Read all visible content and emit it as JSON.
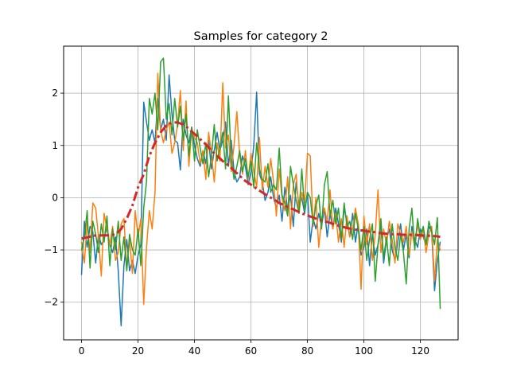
{
  "chart_data": {
    "type": "line",
    "title": "Samples for category 2",
    "xlabel": "",
    "ylabel": "",
    "xlim": [
      -6.35,
      133.35
    ],
    "ylim": [
      -2.72,
      2.9
    ],
    "xticks": [
      0,
      20,
      40,
      60,
      80,
      100,
      120
    ],
    "yticks": [
      -2,
      -1,
      0,
      1,
      2
    ],
    "ytick_labels": [
      "−2",
      "−1",
      "0",
      "1",
      "2"
    ],
    "grid": true,
    "legend": "none",
    "series": [
      {
        "color": "#1f77b4",
        "style": "solid",
        "x": [
          0,
          1,
          2,
          3,
          4,
          5,
          6,
          7,
          8,
          9,
          10,
          11,
          12,
          13,
          14,
          15,
          16,
          17,
          18,
          19,
          20,
          21,
          22,
          23,
          24,
          25,
          26,
          27,
          28,
          29,
          30,
          31,
          32,
          33,
          34,
          35,
          36,
          37,
          38,
          39,
          40,
          41,
          42,
          43,
          44,
          45,
          46,
          47,
          48,
          49,
          50,
          51,
          52,
          53,
          54,
          55,
          56,
          57,
          58,
          59,
          60,
          61,
          62,
          63,
          64,
          65,
          66,
          67,
          68,
          69,
          70,
          71,
          72,
          73,
          74,
          75,
          76,
          77,
          78,
          79,
          80,
          81,
          82,
          83,
          84,
          85,
          86,
          87,
          88,
          89,
          90,
          91,
          92,
          93,
          94,
          95,
          96,
          97,
          98,
          99,
          100,
          101,
          102,
          103,
          104,
          105,
          106,
          107,
          108,
          109,
          110,
          111,
          112,
          113,
          114,
          115,
          116,
          117,
          118,
          119,
          120,
          121,
          122,
          123,
          124,
          125,
          126,
          127
        ],
        "y": [
          -1.47,
          -0.45,
          -0.95,
          -0.55,
          -0.65,
          -1.25,
          -0.7,
          -0.9,
          -0.8,
          -0.55,
          -0.9,
          -1.05,
          -0.75,
          -1.4,
          -2.45,
          -1.3,
          -0.8,
          -1.4,
          -1.2,
          -1.45,
          -1.1,
          -0.9,
          1.83,
          1.45,
          1.1,
          1.3,
          1.05,
          1.9,
          1.3,
          1.5,
          1.1,
          2.35,
          1.6,
          1.1,
          1.05,
          0.53,
          1.5,
          1.2,
          1.05,
          1.35,
          1.0,
          0.75,
          0.6,
          0.9,
          0.65,
          1.1,
          0.55,
          0.9,
          1.25,
          0.9,
          1.1,
          1.45,
          0.6,
          1.1,
          0.5,
          0.3,
          0.4,
          0.8,
          0.6,
          0.25,
          0.5,
          1.0,
          2.02,
          0.45,
          0.3,
          -0.05,
          0.1,
          0.4,
          0.0,
          -0.2,
          0.05,
          -0.45,
          0.2,
          -0.25,
          0.05,
          -0.55,
          0.3,
          -0.15,
          0.0,
          -0.3,
          0.1,
          -0.85,
          -0.4,
          -0.6,
          -0.3,
          -0.55,
          -0.2,
          -0.75,
          -0.3,
          -0.6,
          -0.2,
          -0.5,
          -0.85,
          -0.2,
          -0.45,
          -0.75,
          -0.3,
          -0.85,
          -0.5,
          -1.1,
          -0.95,
          -0.6,
          -1.3,
          -0.7,
          -1.1,
          -0.9,
          -0.55,
          -1.25,
          -0.8,
          -0.6,
          -1.0,
          -1.2,
          -0.85,
          -0.5,
          -1.0,
          -0.7,
          -1.15,
          -0.55,
          -0.8,
          -0.95,
          -0.6,
          -0.75,
          -0.9,
          -0.55,
          -0.65,
          -1.78,
          -1.2,
          -0.85
        ]
      },
      {
        "color": "#ff7f0e",
        "style": "solid",
        "x": [
          0,
          1,
          2,
          3,
          4,
          5,
          6,
          7,
          8,
          9,
          10,
          11,
          12,
          13,
          14,
          15,
          16,
          17,
          18,
          19,
          20,
          21,
          22,
          23,
          24,
          25,
          26,
          27,
          28,
          29,
          30,
          31,
          32,
          33,
          34,
          35,
          36,
          37,
          38,
          39,
          40,
          41,
          42,
          43,
          44,
          45,
          46,
          47,
          48,
          49,
          50,
          51,
          52,
          53,
          54,
          55,
          56,
          57,
          58,
          59,
          60,
          61,
          62,
          63,
          64,
          65,
          66,
          67,
          68,
          69,
          70,
          71,
          72,
          73,
          74,
          75,
          76,
          77,
          78,
          79,
          80,
          81,
          82,
          83,
          84,
          85,
          86,
          87,
          88,
          89,
          90,
          91,
          92,
          93,
          94,
          95,
          96,
          97,
          98,
          99,
          100,
          101,
          102,
          103,
          104,
          105,
          106,
          107,
          108,
          109,
          110,
          111,
          112,
          113,
          114,
          115,
          116,
          117,
          118,
          119,
          120,
          121,
          122,
          123,
          124,
          125,
          126,
          127
        ],
        "y": [
          -0.85,
          -1.25,
          -0.45,
          -1.05,
          -0.1,
          -0.2,
          -0.75,
          -1.5,
          -0.3,
          -0.6,
          -0.9,
          -0.55,
          -1.2,
          -1.05,
          -0.5,
          -0.4,
          -1.35,
          -0.8,
          -1.45,
          -0.25,
          -0.75,
          -0.4,
          -2.04,
          -0.95,
          -0.25,
          -0.6,
          0.1,
          2.38,
          1.3,
          1.05,
          1.3,
          1.45,
          0.85,
          1.05,
          1.4,
          2.05,
          0.9,
          1.85,
          0.6,
          1.3,
          1.15,
          1.05,
          0.65,
          0.9,
          0.35,
          1.25,
          0.85,
          0.3,
          1.05,
          0.7,
          2.2,
          0.95,
          1.2,
          0.5,
          1.0,
          1.65,
          0.8,
          0.45,
          0.9,
          0.35,
          0.85,
          0.5,
          0.2,
          1.15,
          0.15,
          0.6,
          0.2,
          0.75,
          0.3,
          -0.35,
          0.55,
          0.0,
          -0.25,
          0.4,
          -0.6,
          0.25,
          0.45,
          -0.3,
          0.1,
          -0.1,
          0.85,
          0.8,
          -0.55,
          0.0,
          -0.95,
          -0.4,
          -0.2,
          -0.45,
          0.15,
          -0.6,
          -0.3,
          -0.85,
          -0.4,
          -0.95,
          -0.35,
          -0.75,
          -0.6,
          -0.2,
          -0.5,
          -1.75,
          -0.35,
          -0.9,
          -0.5,
          -1.2,
          -0.7,
          0.15,
          -1.05,
          -0.6,
          -0.9,
          -0.45,
          -0.8,
          -1.25,
          -0.5,
          -0.7,
          -0.85,
          -0.55,
          -1.1,
          -0.65,
          -0.95,
          -0.5,
          -0.8,
          -0.6,
          -1.05,
          -0.7,
          -0.55,
          -1.6,
          -0.8,
          -1.0
        ]
      },
      {
        "color": "#2ca02c",
        "style": "solid",
        "x": [
          0,
          1,
          2,
          3,
          4,
          5,
          6,
          7,
          8,
          9,
          10,
          11,
          12,
          13,
          14,
          15,
          16,
          17,
          18,
          19,
          20,
          21,
          22,
          23,
          24,
          25,
          26,
          27,
          28,
          29,
          30,
          31,
          32,
          33,
          34,
          35,
          36,
          37,
          38,
          39,
          40,
          41,
          42,
          43,
          44,
          45,
          46,
          47,
          48,
          49,
          50,
          51,
          52,
          53,
          54,
          55,
          56,
          57,
          58,
          59,
          60,
          61,
          62,
          63,
          64,
          65,
          66,
          67,
          68,
          69,
          70,
          71,
          72,
          73,
          74,
          75,
          76,
          77,
          78,
          79,
          80,
          81,
          82,
          83,
          84,
          85,
          86,
          87,
          88,
          89,
          90,
          91,
          92,
          93,
          94,
          95,
          96,
          97,
          98,
          99,
          100,
          101,
          102,
          103,
          104,
          105,
          106,
          107,
          108,
          109,
          110,
          111,
          112,
          113,
          114,
          115,
          116,
          117,
          118,
          119,
          120,
          121,
          122,
          123,
          124,
          125,
          126,
          127
        ],
        "y": [
          -1.0,
          -0.75,
          -0.25,
          -1.35,
          -0.45,
          -0.7,
          -1.05,
          -0.5,
          -0.85,
          -0.35,
          -1.3,
          -0.6,
          -1.0,
          -0.45,
          -1.2,
          -0.75,
          -1.4,
          -0.7,
          -1.0,
          -1.1,
          -0.6,
          -1.3,
          -0.2,
          0.3,
          1.9,
          1.6,
          2.0,
          1.3,
          2.6,
          2.67,
          1.5,
          1.8,
          1.2,
          1.9,
          1.35,
          1.75,
          1.1,
          1.6,
          0.8,
          1.35,
          0.7,
          1.3,
          0.95,
          0.65,
          1.05,
          0.4,
          0.8,
          1.4,
          0.7,
          0.95,
          1.25,
          0.55,
          1.95,
          0.75,
          0.35,
          0.6,
          0.9,
          0.5,
          0.75,
          0.4,
          0.7,
          0.2,
          1.05,
          0.55,
          0.35,
          0.3,
          0.65,
          0.1,
          0.25,
          0.15,
          0.95,
          0.05,
          -0.1,
          -0.35,
          0.6,
          0.25,
          -0.05,
          -0.3,
          0.55,
          -0.25,
          0.1,
          0.0,
          -0.5,
          -0.15,
          0.05,
          -0.6,
          0.25,
          0.5,
          -0.35,
          -0.05,
          -0.5,
          -0.2,
          -0.8,
          -0.1,
          -0.55,
          -0.45,
          -0.8,
          -0.3,
          -0.6,
          -1.0,
          -0.55,
          -1.2,
          -0.8,
          -0.5,
          -1.6,
          -0.9,
          -0.4,
          -1.15,
          -0.75,
          -1.3,
          -0.5,
          -0.95,
          -1.2,
          -0.7,
          -1.05,
          -1.65,
          -0.6,
          -0.2,
          -1.0,
          -0.4,
          -0.75,
          -0.55,
          -0.9,
          -0.45,
          -0.65,
          -0.9,
          -0.38,
          -2.12
        ]
      },
      {
        "color": "#d62728",
        "style": "dashdot",
        "x": [
          0,
          2,
          4,
          6,
          8,
          10,
          12,
          14,
          16,
          18,
          20,
          22,
          24,
          26,
          28,
          30,
          32,
          34,
          36,
          38,
          40,
          42,
          44,
          46,
          48,
          50,
          52,
          54,
          56,
          58,
          60,
          62,
          64,
          66,
          68,
          70,
          72,
          74,
          76,
          78,
          80,
          82,
          84,
          86,
          88,
          90,
          92,
          94,
          96,
          98,
          100,
          102,
          104,
          106,
          108,
          110,
          112,
          114,
          116,
          118,
          120,
          122,
          124,
          126,
          127
        ],
        "y": [
          -0.78,
          -0.76,
          -0.73,
          -0.72,
          -0.72,
          -0.72,
          -0.7,
          -0.6,
          -0.4,
          -0.15,
          0.2,
          0.45,
          0.8,
          1.05,
          1.25,
          1.38,
          1.44,
          1.44,
          1.4,
          1.32,
          1.22,
          1.12,
          1.02,
          0.9,
          0.8,
          0.7,
          0.62,
          0.52,
          0.42,
          0.32,
          0.25,
          0.17,
          0.1,
          0.03,
          -0.03,
          -0.1,
          -0.15,
          -0.2,
          -0.25,
          -0.3,
          -0.34,
          -0.38,
          -0.42,
          -0.45,
          -0.48,
          -0.52,
          -0.55,
          -0.58,
          -0.6,
          -0.62,
          -0.63,
          -0.65,
          -0.66,
          -0.68,
          -0.69,
          -0.7,
          -0.7,
          -0.71,
          -0.71,
          -0.71,
          -0.72,
          -0.73,
          -0.73,
          -0.74,
          -0.75
        ]
      }
    ]
  }
}
